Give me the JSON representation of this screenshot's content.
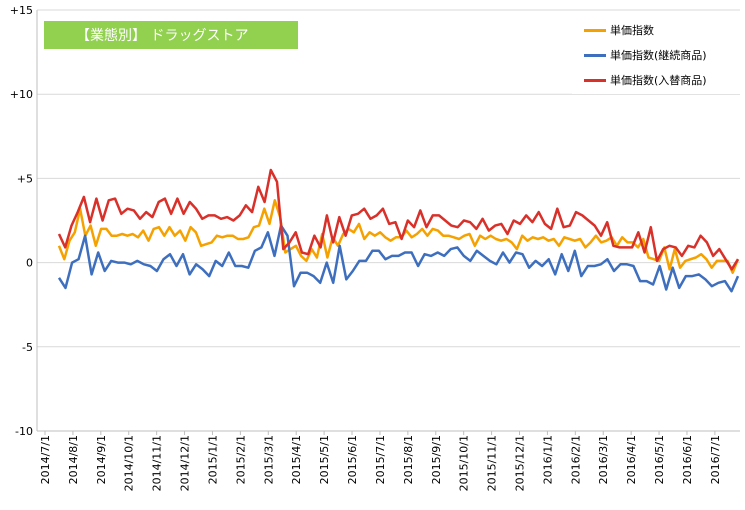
{
  "chart_data": {
    "type": "line",
    "title": "【業態別】 ドラッグストア",
    "ylim": [
      -10,
      15
    ],
    "yticks": [
      15,
      10,
      5,
      0,
      -5,
      -10
    ],
    "ytick_labels": [
      "+15",
      "+10",
      "+5",
      "0",
      "-5",
      "-10"
    ],
    "grid": "horizontal",
    "legend_position": "top-right",
    "x_labels": [
      "2014/7/1",
      "2014/8/1",
      "2014/9/1",
      "2014/10/1",
      "2014/11/1",
      "2014/12/1",
      "2015/1/1",
      "2015/2/1",
      "2015/3/1",
      "2015/4/1",
      "2015/5/1",
      "2015/6/1",
      "2015/7/1",
      "2015/8/1",
      "2015/9/1",
      "2015/10/1",
      "2015/11/1",
      "2015/12/1",
      "2016/1/1",
      "2016/2/1",
      "2016/3/1",
      "2016/4/1",
      "2016/5/1",
      "2016/6/1",
      "2016/7/1"
    ],
    "series": [
      {
        "name": "単価指数",
        "color": "#f5a200",
        "values": [
          1.0,
          0.2,
          1.3,
          1.8,
          3.2,
          1.6,
          2.2,
          1.0,
          2.0,
          2.0,
          1.6,
          1.6,
          1.7,
          1.6,
          1.7,
          1.5,
          1.9,
          1.3,
          2.0,
          2.1,
          1.6,
          2.1,
          1.6,
          1.9,
          1.3,
          2.1,
          1.8,
          1.0,
          1.1,
          1.2,
          1.6,
          1.5,
          1.6,
          1.6,
          1.4,
          1.4,
          1.5,
          2.1,
          2.2,
          3.2,
          2.3,
          3.7,
          2.7,
          0.6,
          0.8,
          1.0,
          0.4,
          0.1,
          0.8,
          0.3,
          1.7,
          0.3,
          1.5,
          1.0,
          1.7,
          2.0,
          1.8,
          2.3,
          1.4,
          1.8,
          1.6,
          1.8,
          1.5,
          1.3,
          1.5,
          1.5,
          1.9,
          1.5,
          1.7,
          2.0,
          1.6,
          2.0,
          1.9,
          1.6,
          1.6,
          1.5,
          1.4,
          1.6,
          1.7,
          1.0,
          1.6,
          1.4,
          1.6,
          1.4,
          1.3,
          1.4,
          1.2,
          0.8,
          1.6,
          1.3,
          1.5,
          1.4,
          1.5,
          1.3,
          1.4,
          1.0,
          1.5,
          1.4,
          1.3,
          1.4,
          0.9,
          1.2,
          1.6,
          1.2,
          1.3,
          1.5,
          1.0,
          1.5,
          1.2,
          1.2,
          0.9,
          1.4,
          0.3,
          0.2,
          0.1,
          0.9,
          -0.4,
          0.8,
          -0.3,
          0.1,
          0.2,
          0.3,
          0.5,
          0.2,
          -0.3,
          0.1,
          0.1,
          0.1,
          -0.6,
          0.2
        ]
      },
      {
        "name": "単価指数(継続商品)",
        "color": "#3e6fbf",
        "values": [
          -0.9,
          -1.5,
          0.0,
          0.2,
          1.6,
          -0.7,
          0.6,
          -0.5,
          0.1,
          0.0,
          0.0,
          -0.1,
          0.1,
          -0.1,
          -0.2,
          -0.5,
          0.2,
          0.5,
          -0.2,
          0.5,
          -0.7,
          -0.1,
          -0.4,
          -0.8,
          0.1,
          -0.2,
          0.6,
          -0.2,
          -0.2,
          -0.3,
          0.7,
          0.9,
          1.8,
          0.4,
          2.2,
          1.6,
          -1.4,
          -0.6,
          -0.6,
          -0.8,
          -1.2,
          0.0,
          -1.2,
          1.0,
          -1.0,
          -0.5,
          0.1,
          0.1,
          0.7,
          0.7,
          0.2,
          0.4,
          0.4,
          0.6,
          0.6,
          -0.2,
          0.5,
          0.4,
          0.6,
          0.4,
          0.8,
          0.9,
          0.4,
          0.1,
          0.7,
          0.4,
          0.1,
          -0.1,
          0.6,
          0.0,
          0.6,
          0.5,
          -0.3,
          0.1,
          -0.2,
          0.2,
          -0.7,
          0.5,
          -0.5,
          0.7,
          -0.8,
          -0.2,
          -0.2,
          -0.1,
          0.2,
          -0.5,
          -0.1,
          -0.1,
          -0.2,
          -1.1,
          -1.1,
          -1.3,
          -0.2,
          -1.6,
          -0.3,
          -1.5,
          -0.8,
          -0.8,
          -0.7,
          -1.0,
          -1.4,
          -1.2,
          -1.1,
          -1.7,
          -0.8
        ]
      },
      {
        "name": "単価指数(入替商品)",
        "color": "#d9302a",
        "values": [
          1.7,
          0.9,
          2.2,
          3.0,
          3.9,
          2.4,
          3.8,
          2.5,
          3.7,
          3.8,
          2.9,
          3.2,
          3.1,
          2.6,
          3.0,
          2.7,
          3.6,
          3.8,
          2.9,
          3.8,
          2.9,
          3.6,
          3.2,
          2.6,
          2.8,
          2.8,
          2.6,
          2.7,
          2.5,
          2.8,
          3.4,
          3.0,
          4.5,
          3.6,
          5.5,
          4.8,
          0.8,
          1.2,
          1.8,
          0.6,
          0.5,
          1.6,
          0.9,
          2.8,
          1.2,
          2.7,
          1.6,
          2.8,
          2.9,
          3.2,
          2.6,
          2.8,
          3.2,
          2.3,
          2.4,
          1.4,
          2.5,
          2.1,
          3.1,
          2.1,
          2.8,
          2.8,
          2.5,
          2.2,
          2.1,
          2.5,
          2.4,
          2.0,
          2.6,
          1.9,
          2.2,
          2.3,
          1.7,
          2.5,
          2.3,
          2.8,
          2.4,
          3.0,
          2.3,
          2.0,
          3.2,
          2.1,
          2.2,
          3.0,
          2.8,
          2.5,
          2.2,
          1.6,
          2.4,
          1.0,
          0.9,
          0.9,
          0.9,
          1.8,
          0.6,
          2.1,
          0.1,
          0.8,
          1.0,
          0.9,
          0.4,
          1.0,
          0.9,
          1.6,
          1.2,
          0.4,
          0.8,
          0.2,
          -0.4,
          0.2
        ]
      }
    ]
  }
}
